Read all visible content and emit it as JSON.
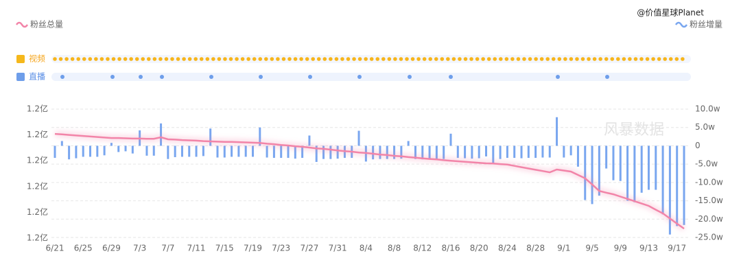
{
  "chart_data": {
    "type": "combo",
    "watermarks": [
      "@价值星球Planet",
      "风暴数据"
    ],
    "event_rows": [
      "视频",
      "直播"
    ],
    "categories": [
      "6/21",
      null,
      null,
      null,
      "6/25",
      null,
      null,
      null,
      "6/29",
      null,
      null,
      null,
      "7/3",
      null,
      null,
      null,
      "7/7",
      null,
      null,
      null,
      "7/11",
      null,
      null,
      null,
      "7/15",
      null,
      null,
      null,
      "7/19",
      null,
      null,
      null,
      "7/23",
      null,
      null,
      null,
      "7/27",
      null,
      null,
      null,
      "7/31",
      null,
      null,
      null,
      "8/4",
      null,
      null,
      null,
      "8/8",
      null,
      null,
      null,
      "8/12",
      null,
      null,
      null,
      "8/16",
      null,
      null,
      null,
      "8/20",
      null,
      null,
      null,
      "8/24",
      null,
      null,
      null,
      "8/28",
      null,
      null,
      null,
      "9/1",
      null,
      null,
      null,
      "9/5",
      null,
      null,
      null,
      "9/9",
      null,
      null,
      null,
      "9/13",
      null,
      null,
      null,
      "9/17",
      null
    ],
    "ylim": [
      12000,
      12050
    ],
    "yticks": [
      {
        "value": 12000,
        "label": "1.2亿"
      },
      {
        "value": 12010,
        "label": "1.2亿"
      },
      {
        "value": 12020,
        "label": "1.2亿"
      },
      {
        "value": 12030,
        "label": "1.2亿"
      },
      {
        "value": 12040,
        "label": "1.2亿"
      },
      {
        "value": 12050,
        "label": "1.2亿"
      }
    ],
    "y2lim": [
      -25,
      10
    ],
    "y2ticks": [
      {
        "value": -25,
        "label": "-25.0w"
      },
      {
        "value": -20,
        "label": "-20.0w"
      },
      {
        "value": -15,
        "label": "-15.0w"
      },
      {
        "value": -10,
        "label": "-10.0w"
      },
      {
        "value": -5,
        "label": "-5.0w"
      },
      0,
      {
        "value": 5,
        "label": "5.0w"
      },
      {
        "value": 10,
        "label": "10.0w"
      }
    ],
    "grid": true,
    "series": [
      {
        "name": "粉丝总量",
        "type": "line",
        "color": "#f284a8",
        "legend": "left",
        "values": [
          12040.4,
          12040.2,
          12040.0,
          12039.8,
          12039.6,
          12039.4,
          12039.2,
          12039.0,
          12038.8,
          12038.8,
          12038.7,
          12038.6,
          12038.6,
          12038.5,
          12038.5,
          12039.1,
          12038.3,
          12038.2,
          12038.0,
          12037.9,
          12037.8,
          12037.6,
          12037.5,
          12037.4,
          12037.3,
          12037.3,
          12037.2,
          12037.1,
          12037.0,
          12036.9,
          12036.6,
          12036.4,
          12036.1,
          12035.9,
          12035.6,
          12035.4,
          12035.1,
          12034.8,
          12034.6,
          12034.3,
          12034.0,
          12033.7,
          12033.5,
          12033.2,
          12033.0,
          12032.7,
          12032.4,
          12032.2,
          12031.9,
          12031.7,
          12031.4,
          12031.2,
          12030.9,
          12030.7,
          12030.5,
          12030.2,
          12030.0,
          12029.8,
          12029.6,
          12029.4,
          12029.2,
          12029.0,
          12028.9,
          12028.7,
          12028.5,
          12028.0,
          12027.5,
          12027.0,
          12026.5,
          12026.0,
          12025.5,
          12026.6,
          12026.2,
          12025.8,
          12024.5,
          12023.2,
          12020.8,
          12018.3,
          12017.6,
          12017.0,
          12016.1,
          12015.2,
          12014.3,
          12013.4,
          12012.5,
          12011.0,
          12009.6,
          12007.6,
          12005.6,
          12003.7
        ]
      },
      {
        "name": "粉丝增量",
        "type": "bar",
        "axis": "y2",
        "color": "#79a6ef",
        "legend": "right",
        "values": [
          -3.3,
          1.3,
          -3.7,
          -3.4,
          -3,
          -3,
          -3,
          -2.6,
          0.8,
          -1.7,
          -1.5,
          -2.1,
          4.2,
          -2.7,
          -2.7,
          6.1,
          -3.6,
          -3.1,
          -3,
          -3,
          -3,
          -2.8,
          4.7,
          -3.2,
          -3.2,
          -3,
          -3,
          -3,
          -3,
          5.0,
          -3.2,
          -3.3,
          -3.3,
          -3.3,
          -3.5,
          -3.3,
          2.8,
          -4.4,
          -3.6,
          -3.6,
          -3.5,
          -3.3,
          -3.3,
          4.1,
          -4.3,
          -3.7,
          -3.6,
          -3.6,
          -3.6,
          -3.5,
          1.3,
          -3.6,
          -3.7,
          -3.5,
          -3.5,
          -3.6,
          3.3,
          -3.3,
          -3.4,
          -3.5,
          -3.4,
          -2.9,
          -5.0,
          -3.6,
          -3.3,
          -3.3,
          -3.4,
          -3.3,
          -3.3,
          -3.2,
          -3.2,
          7.8,
          -3.2,
          -2.6,
          -5.7,
          -14.8,
          -15.9,
          -13.6,
          -6.2,
          -9.4,
          -9.6,
          -15,
          -15.4,
          -12.8,
          -12,
          -12,
          -18.7,
          -24.2,
          -21.9,
          -21.6
        ]
      }
    ]
  }
}
